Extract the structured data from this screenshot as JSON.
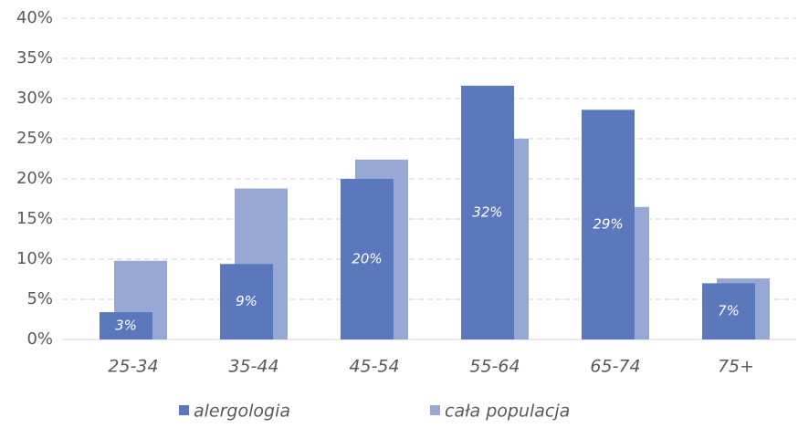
{
  "chart_data": {
    "type": "bar",
    "categories": [
      "25-34",
      "35-44",
      "45-54",
      "55-64",
      "65-74",
      "75+"
    ],
    "series": [
      {
        "name": "alergologia",
        "color": "#5b78bd",
        "values": [
          3.4,
          9.4,
          20,
          31.6,
          28.6,
          7
        ],
        "value_labels": [
          "3%",
          "9%",
          "20%",
          "32%",
          "29%",
          "7%"
        ]
      },
      {
        "name": "cała populacja",
        "color": "#97a8d4",
        "values": [
          9.8,
          18.8,
          22.4,
          25,
          16.5,
          7.6
        ]
      }
    ],
    "ylim": [
      0,
      40
    ],
    "yticks": [
      {
        "value": 0,
        "label": "0%"
      },
      {
        "value": 5,
        "label": "5%"
      },
      {
        "value": 10,
        "label": "10%"
      },
      {
        "value": 15,
        "label": "15%"
      },
      {
        "value": 20,
        "label": "20%"
      },
      {
        "value": 25,
        "label": "25%"
      },
      {
        "value": 30,
        "label": "30%"
      },
      {
        "value": 35,
        "label": "35%"
      },
      {
        "value": 40,
        "label": "40%"
      }
    ],
    "grid": true,
    "legend": "bottom"
  }
}
